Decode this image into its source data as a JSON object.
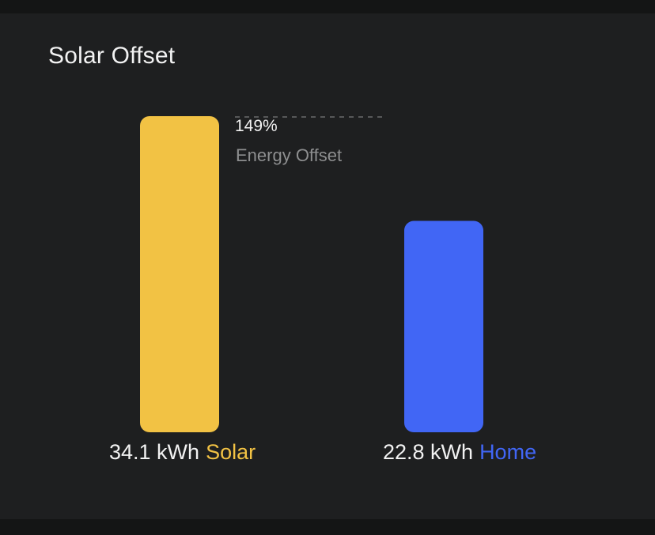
{
  "title": "Solar Offset",
  "offset": {
    "value": "149%",
    "label": "Energy Offset"
  },
  "chart_data": {
    "type": "bar",
    "categories": [
      "Solar",
      "Home"
    ],
    "values": [
      34.1,
      22.8
    ],
    "unit": "kWh",
    "colors": [
      "#f2c244",
      "#4166f5"
    ],
    "annotation": {
      "text": "149% Energy Offset"
    },
    "labels": [
      {
        "amount": "34.1 kWh",
        "name": "Solar"
      },
      {
        "amount": "22.8 kWh",
        "name": "Home"
      }
    ]
  },
  "colors": {
    "background": "#1e1f20",
    "text": "#f2f2f2",
    "muted_text": "#8e8f90",
    "solar": "#f2c244",
    "home": "#4166f5"
  }
}
